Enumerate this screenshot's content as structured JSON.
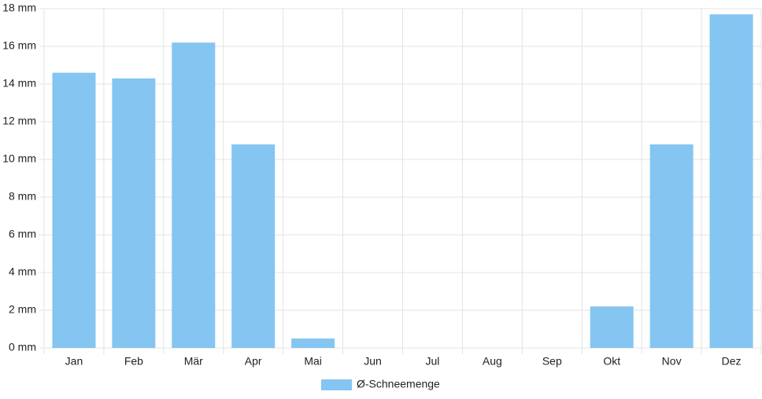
{
  "chart_data": {
    "type": "bar",
    "categories": [
      "Jan",
      "Feb",
      "Mär",
      "Apr",
      "Mai",
      "Jun",
      "Jul",
      "Aug",
      "Sep",
      "Okt",
      "Nov",
      "Dez"
    ],
    "series": [
      {
        "name": "Ø-Schneemenge",
        "color": "#85c5f1",
        "values": [
          14.6,
          14.3,
          16.2,
          10.8,
          0.5,
          0,
          0,
          0,
          0,
          2.2,
          10.8,
          17.7
        ]
      }
    ],
    "ylim": [
      0,
      18
    ],
    "yticks": [
      {
        "value": 0,
        "label": "0 mm"
      },
      {
        "value": 2,
        "label": "2 mm"
      },
      {
        "value": 4,
        "label": "4 mm"
      },
      {
        "value": 6,
        "label": "6 mm"
      },
      {
        "value": 8,
        "label": "8 mm"
      },
      {
        "value": 10,
        "label": "10 mm"
      },
      {
        "value": 12,
        "label": "12 mm"
      },
      {
        "value": 14,
        "label": "14 mm"
      },
      {
        "value": 16,
        "label": "16 mm"
      },
      {
        "value": 18,
        "label": "18 mm"
      }
    ],
    "grid": true,
    "legend": "bottom"
  }
}
